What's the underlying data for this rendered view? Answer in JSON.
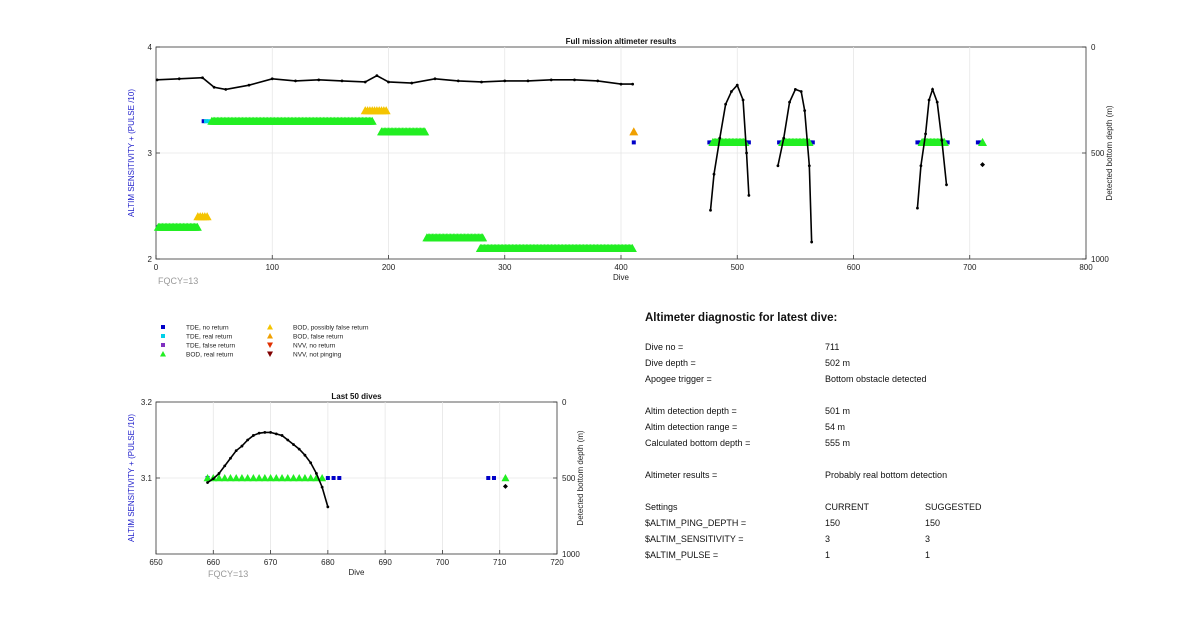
{
  "chart_data": [
    {
      "type": "scatter",
      "title": "Full mission altimeter results",
      "xlabel": "Dive",
      "ylabel_left": "ALTIM SENSITIVITY + (PULSE /10)",
      "ylabel_right": "Detected bottom depth (m)",
      "xlim": [
        0,
        800
      ],
      "ylim_left": [
        2,
        4
      ],
      "ylim_right": [
        1000,
        0
      ],
      "xticks": [
        0,
        100,
        200,
        300,
        400,
        500,
        600,
        700,
        800
      ],
      "yticks_left": [
        2,
        3,
        4
      ],
      "yticks_right": [
        0,
        500,
        1000
      ],
      "grid": true,
      "annotation": "FQCY=13",
      "series": [
        {
          "name": "TDE, no return",
          "marker": "square",
          "color": "#0000c8",
          "points": [
            [
              2,
              2.3
            ],
            [
              41,
              3.3
            ],
            [
              411,
              3.1
            ],
            [
              476,
              3.1
            ],
            [
              478,
              3.1
            ],
            [
              508,
              3.1
            ],
            [
              510,
              3.1
            ],
            [
              536,
              3.1
            ],
            [
              538,
              3.1
            ],
            [
              563,
              3.1
            ],
            [
              565,
              3.1
            ],
            [
              655,
              3.1
            ],
            [
              657,
              3.1
            ],
            [
              679,
              3.1
            ],
            [
              681,
              3.1
            ],
            [
              707,
              3.1
            ],
            [
              709,
              3.1
            ]
          ]
        },
        {
          "name": "TDE, real return",
          "marker": "square",
          "color": "#00d0e8",
          "points": [
            [
              43,
              3.3
            ],
            [
              45,
              3.3
            ]
          ]
        },
        {
          "name": "BOD, real return",
          "marker": "triangle",
          "color": "#22ee22",
          "segments": [
            [
              2,
              36,
              2.3
            ],
            [
              48,
              186,
              3.3
            ],
            [
              194,
              232,
              3.2
            ],
            [
              233,
              282,
              2.2
            ],
            [
              279,
              410,
              2.1
            ],
            [
              479,
              507,
              3.1
            ],
            [
              539,
              562,
              3.1
            ],
            [
              659,
              679,
              3.1
            ],
            [
              711,
              711,
              3.1
            ]
          ]
        },
        {
          "name": "BOD, possibly false return",
          "marker": "triangle",
          "color": "#f4c400",
          "points": [
            [
              36,
              2.4
            ],
            [
              38,
              2.4
            ],
            [
              40,
              2.4
            ],
            [
              42,
              2.4
            ],
            [
              44,
              2.4
            ],
            [
              180,
              3.4
            ],
            [
              182,
              3.4
            ],
            [
              184,
              3.4
            ],
            [
              186,
              3.4
            ],
            [
              188,
              3.4
            ],
            [
              190,
              3.4
            ],
            [
              192,
              3.4
            ],
            [
              194,
              3.4
            ],
            [
              196,
              3.4
            ],
            [
              198,
              3.4
            ]
          ]
        },
        {
          "name": "BOD, false return",
          "marker": "triangle",
          "color": "#f0a000",
          "points": [
            [
              411,
              3.2
            ]
          ]
        }
      ],
      "depth_series": [
        {
          "name": "Dive depth",
          "color": "#000000",
          "points": [
            [
              1,
              155
            ],
            [
              20,
              150
            ],
            [
              40,
              145
            ],
            [
              50,
              190
            ],
            [
              60,
              200
            ],
            [
              80,
              180
            ],
            [
              100,
              150
            ],
            [
              120,
              160
            ],
            [
              140,
              155
            ],
            [
              160,
              160
            ],
            [
              180,
              165
            ],
            [
              190,
              135
            ],
            [
              200,
              165
            ],
            [
              220,
              170
            ],
            [
              240,
              150
            ],
            [
              260,
              160
            ],
            [
              280,
              165
            ],
            [
              300,
              160
            ],
            [
              320,
              160
            ],
            [
              340,
              155
            ],
            [
              360,
              155
            ],
            [
              380,
              160
            ],
            [
              400,
              175
            ],
            [
              410,
              175
            ]
          ]
        },
        {
          "name": "Detected bottom, dive 475-510",
          "color": "#000000",
          "points": [
            [
              477,
              770
            ],
            [
              480,
              600
            ],
            [
              485,
              430
            ],
            [
              490,
              270
            ],
            [
              495,
              210
            ],
            [
              500,
              180
            ],
            [
              505,
              250
            ],
            [
              508,
              500
            ],
            [
              510,
              700
            ]
          ]
        },
        {
          "name": "Detected bottom, dive 535-565",
          "color": "#000000",
          "points": [
            [
              535,
              560
            ],
            [
              540,
              430
            ],
            [
              545,
              260
            ],
            [
              550,
              200
            ],
            [
              555,
              210
            ],
            [
              558,
              300
            ],
            [
              562,
              560
            ],
            [
              564,
              920
            ]
          ]
        },
        {
          "name": "Detected bottom, dive 655-680",
          "color": "#000000",
          "points": [
            [
              655,
              760
            ],
            [
              658,
              560
            ],
            [
              662,
              410
            ],
            [
              665,
              250
            ],
            [
              668,
              200
            ],
            [
              672,
              260
            ],
            [
              676,
              440
            ],
            [
              680,
              650
            ]
          ]
        },
        {
          "name": "Detected bottom, dive 711",
          "color": "#000000",
          "points": [
            [
              711,
              555
            ]
          ]
        }
      ]
    },
    {
      "type": "scatter",
      "title": "Last 50 dives",
      "xlabel": "Dive",
      "ylabel_left": "ALTIM SENSITIVITY + (PULSE /10)",
      "ylabel_right": "Detected bottom depth (m)",
      "xlim": [
        650,
        720
      ],
      "ylim_left": [
        3.0,
        3.2
      ],
      "ylim_right": [
        1000,
        0
      ],
      "xticks": [
        650,
        660,
        670,
        680,
        690,
        700,
        710,
        720
      ],
      "yticks_left": [
        3.1,
        3.2
      ],
      "yticks_right": [
        0,
        500,
        1000
      ],
      "grid": true,
      "annotation": "FQCY=13",
      "series": [
        {
          "name": "TDE, no return",
          "marker": "square",
          "color": "#0000c8",
          "points": [
            [
              659,
              3.1
            ],
            [
              680,
              3.1
            ],
            [
              681,
              3.1
            ],
            [
              682,
              3.1
            ],
            [
              708,
              3.1
            ],
            [
              709,
              3.1
            ]
          ]
        },
        {
          "name": "BOD, real return",
          "marker": "triangle",
          "color": "#22ee22",
          "points": [
            [
              659,
              3.1
            ],
            [
              660,
              3.1
            ],
            [
              661,
              3.1
            ],
            [
              662,
              3.1
            ],
            [
              663,
              3.1
            ],
            [
              664,
              3.1
            ],
            [
              665,
              3.1
            ],
            [
              666,
              3.1
            ],
            [
              667,
              3.1
            ],
            [
              668,
              3.1
            ],
            [
              669,
              3.1
            ],
            [
              670,
              3.1
            ],
            [
              671,
              3.1
            ],
            [
              672,
              3.1
            ],
            [
              673,
              3.1
            ],
            [
              674,
              3.1
            ],
            [
              675,
              3.1
            ],
            [
              676,
              3.1
            ],
            [
              677,
              3.1
            ],
            [
              678,
              3.1
            ],
            [
              679,
              3.1
            ],
            [
              711,
              3.1
            ]
          ]
        }
      ],
      "depth_series": [
        {
          "name": "Detected bottom depth",
          "color": "#000000",
          "points": [
            [
              659,
              530
            ],
            [
              660,
              505
            ],
            [
              661,
              470
            ],
            [
              662,
              420
            ],
            [
              663,
              370
            ],
            [
              664,
              320
            ],
            [
              665,
              290
            ],
            [
              666,
              250
            ],
            [
              667,
              220
            ],
            [
              668,
              205
            ],
            [
              669,
              200
            ],
            [
              670,
              200
            ],
            [
              671,
              210
            ],
            [
              672,
              220
            ],
            [
              673,
              250
            ],
            [
              674,
              280
            ],
            [
              675,
              310
            ],
            [
              676,
              350
            ],
            [
              677,
              400
            ],
            [
              678,
              470
            ],
            [
              679,
              560
            ],
            [
              680,
              690
            ]
          ]
        },
        {
          "name": "Dive 711",
          "color": "#000000",
          "points": [
            [
              711,
              555
            ]
          ]
        }
      ]
    }
  ],
  "legend": {
    "items": [
      {
        "label": "TDE, no return",
        "marker": "square",
        "color": "#0000c8"
      },
      {
        "label": "TDE, real return",
        "marker": "square",
        "color": "#00d0e8"
      },
      {
        "label": "TDE, false return",
        "marker": "square",
        "color": "#8030c0"
      },
      {
        "label": "BOD, real return",
        "marker": "triangle",
        "color": "#22ee22"
      },
      {
        "label": "BOD, possibly false return",
        "marker": "triangle",
        "color": "#f4c400"
      },
      {
        "label": "BOD, false return",
        "marker": "triangle",
        "color": "#f0a000"
      },
      {
        "label": "NVV, no return",
        "marker": "triangle-down",
        "color": "#e03000"
      },
      {
        "label": "NVV, not pinging",
        "marker": "triangle-down",
        "color": "#800000"
      }
    ]
  },
  "diagnostic": {
    "title": "Altimeter diagnostic for latest dive:",
    "dive_no_label": "Dive no =",
    "dive_no_value": "711",
    "dive_depth_label": "Dive depth =",
    "dive_depth_value": "502 m",
    "apogee_label": "Apogee trigger =",
    "apogee_value": "Bottom obstacle detected",
    "detect_depth_label": "Altim detection depth =",
    "detect_depth_value": "501 m",
    "detect_range_label": "Altim detection range =",
    "detect_range_value": "54 m",
    "calc_bottom_label": "Calculated bottom depth =",
    "calc_bottom_value": "555 m",
    "results_label": "Altimeter results =",
    "results_value": "Probably real bottom detection",
    "settings_label": "Settings",
    "current_label": "CURRENT",
    "suggested_label": "SUGGESTED",
    "ping_depth_label": "$ALTIM_PING_DEPTH =",
    "ping_depth_current": "150",
    "ping_depth_suggested": "150",
    "sensitivity_label": "$ALTIM_SENSITIVITY =",
    "sensitivity_current": "3",
    "sensitivity_suggested": "3",
    "pulse_label": "$ALTIM_PULSE =",
    "pulse_current": "1",
    "pulse_suggested": "1"
  }
}
